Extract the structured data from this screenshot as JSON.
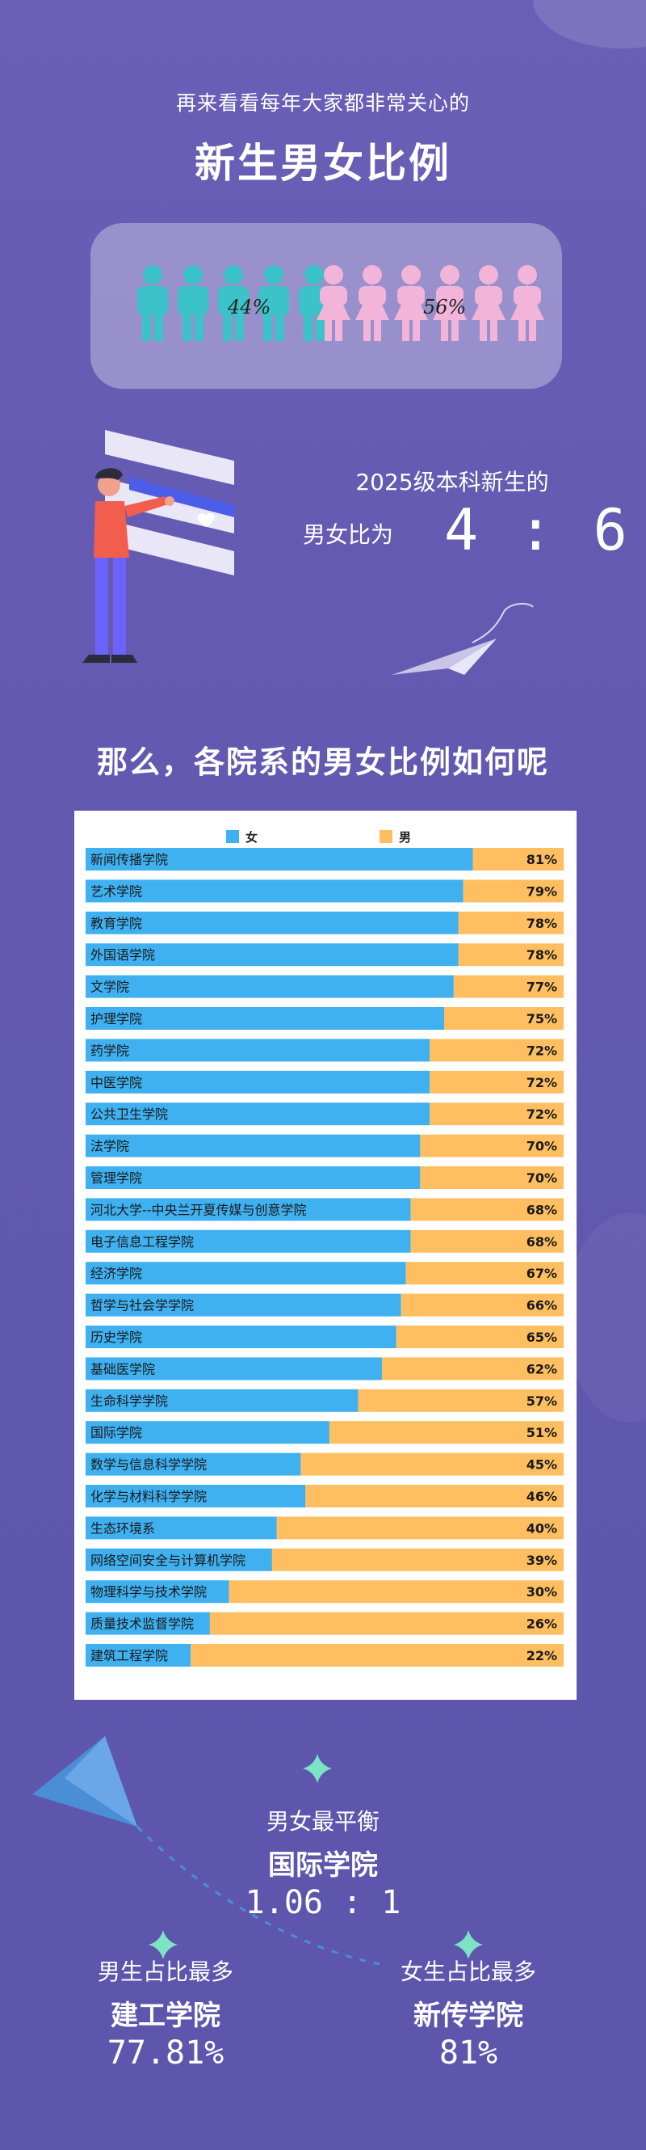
{
  "header": {
    "intro": "再来看看每年大家都非常关心的",
    "title": "新生男女比例"
  },
  "ratio_card": {
    "male_percent": "44%",
    "female_percent": "56%",
    "male_color": "#3cc2c9",
    "female_color": "#f2b4d8"
  },
  "ratio_summary": {
    "line1": "2025级本科新生的",
    "line2": "男女比为",
    "ratio": "4 : 6"
  },
  "section": {
    "question": "那么，各院系的男女比例如何呢"
  },
  "chart_data": {
    "type": "bar",
    "stacked": true,
    "orientation": "horizontal",
    "legend_position": "top",
    "series": [
      {
        "name": "女",
        "color": "#3fb0f0"
      },
      {
        "name": "男",
        "color": "#ffbf61"
      }
    ],
    "categories": [
      "新闻传播学院",
      "艺术学院",
      "教育学院",
      "外国语学院",
      "文学院",
      "护理学院",
      "药学院",
      "中医学院",
      "公共卫生学院",
      "法学院",
      "管理学院",
      "河北大学--中央兰开夏传媒与创意学院",
      "电子信息工程学院",
      "经济学院",
      "哲学与社会学学院",
      "历史学院",
      "基础医学院",
      "生命科学学院",
      "国际学院",
      "数学与信息科学学院",
      "化学与材料科学学院",
      "生态环境系",
      "网络空间安全与计算机学院",
      "物理科学与技术学院",
      "质量技术监督学院",
      "建筑工程学院"
    ],
    "female_share": [
      81,
      79,
      78,
      78,
      77,
      75,
      72,
      72,
      72,
      70,
      70,
      68,
      68,
      67,
      66,
      65,
      62,
      57,
      51,
      45,
      46,
      40,
      39,
      30,
      26,
      22
    ],
    "labels": [
      "81%",
      "79%",
      "78%",
      "78%",
      "77%",
      "75%",
      "72%",
      "72%",
      "72%",
      "70%",
      "70%",
      "68%",
      "68%",
      "67%",
      "66%",
      "65%",
      "62%",
      "57%",
      "51%",
      "45%",
      "46%",
      "40%",
      "39%",
      "30%",
      "26%",
      "22%"
    ],
    "xlim": [
      0,
      100
    ]
  },
  "highlights": {
    "balanced": {
      "label": "男女最平衡",
      "name": "国际学院",
      "value": "1.06 : 1"
    },
    "most_male": {
      "label": "男生占比最多",
      "name": "建工学院",
      "value": "77.81%"
    },
    "most_female": {
      "label": "女生占比最多",
      "name": "新传学院",
      "value": "81%"
    }
  }
}
